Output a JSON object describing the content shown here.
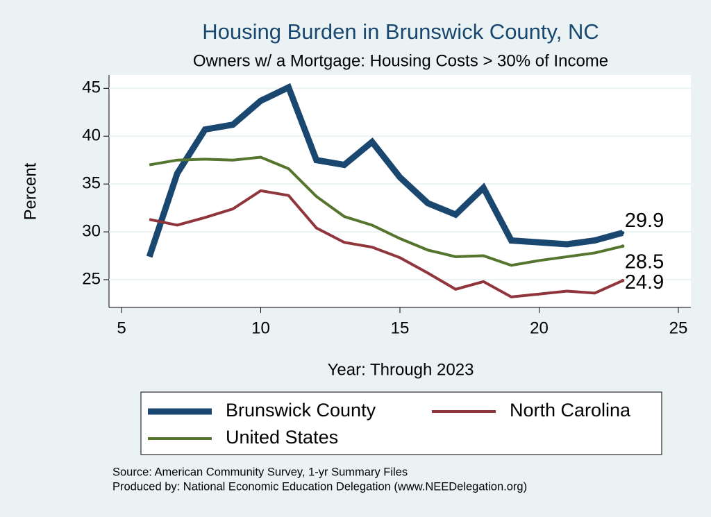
{
  "chart_data": {
    "type": "line",
    "title": "Housing Burden in Brunswick County, NC",
    "subtitle": "Owners w/ a Mortgage: Housing Costs > 30% of Income",
    "x_label": "Year: Through 2023",
    "y_label": "Percent",
    "x": [
      6,
      7,
      8,
      9,
      10,
      11,
      12,
      13,
      14,
      15,
      16,
      17,
      18,
      19,
      20,
      21,
      22,
      23
    ],
    "series": [
      {
        "name": "Brunswick County",
        "color": "#1a476f",
        "width": 9,
        "values": [
          27.4,
          36.1,
          40.7,
          41.2,
          43.7,
          45.1,
          37.5,
          37.0,
          39.4,
          35.7,
          33.0,
          31.8,
          34.6,
          29.1,
          28.9,
          28.7,
          29.1,
          29.9
        ]
      },
      {
        "name": "North Carolina",
        "color": "#90353b",
        "width": 4,
        "values": [
          31.3,
          30.7,
          31.5,
          32.4,
          34.3,
          33.8,
          30.4,
          28.9,
          28.4,
          27.3,
          25.7,
          24.0,
          24.8,
          23.2,
          23.5,
          23.8,
          23.6,
          24.9
        ]
      },
      {
        "name": "United States",
        "color": "#55752f",
        "width": 4,
        "values": [
          37.0,
          37.5,
          37.6,
          37.5,
          37.8,
          36.6,
          33.7,
          31.6,
          30.7,
          29.3,
          28.1,
          27.4,
          27.5,
          26.5,
          27.0,
          27.4,
          27.8,
          28.5
        ]
      }
    ],
    "xlim": [
      4.55,
      25.45
    ],
    "xticks": [
      5,
      10,
      15,
      20,
      25
    ],
    "ylim": [
      22.1,
      46.4
    ],
    "yticks": [
      25,
      30,
      35,
      40,
      45
    ],
    "grid": true,
    "notes": [
      "Source: American Community Survey, 1-yr Summary Files",
      "Produced by: National Economic Education Delegation (www.NEEDelegation.org)"
    ]
  }
}
